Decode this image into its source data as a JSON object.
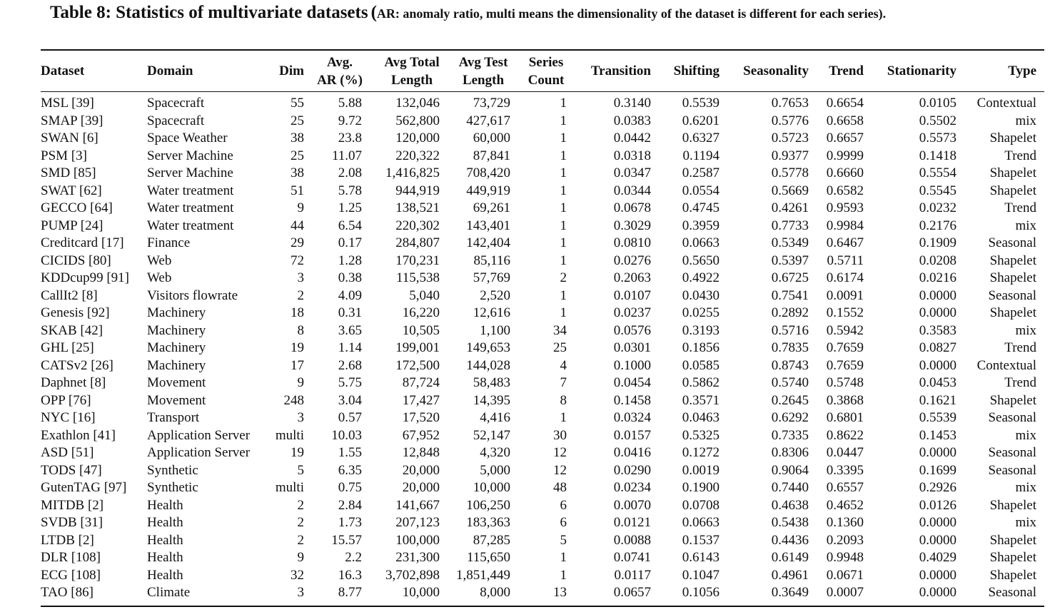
{
  "caption": {
    "main": "Table 8: Statistics of multivariate datasets",
    "paren_open": "(",
    "note": "AR: anomaly ratio, multi means the dimensionality of the dataset is different for each series).",
    "paren_close": ""
  },
  "headers": [
    {
      "key": "dataset",
      "lines": [
        "Dataset"
      ]
    },
    {
      "key": "domain",
      "lines": [
        "Domain"
      ]
    },
    {
      "key": "dim",
      "lines": [
        "Dim"
      ]
    },
    {
      "key": "avg_ar",
      "lines": [
        "Avg.",
        "AR (%)"
      ]
    },
    {
      "key": "avg_total_length",
      "lines": [
        "Avg Total",
        "Length"
      ]
    },
    {
      "key": "avg_test_length",
      "lines": [
        "Avg Test",
        "Length"
      ]
    },
    {
      "key": "series_count",
      "lines": [
        "Series",
        "Count"
      ]
    },
    {
      "key": "transition",
      "lines": [
        "Transition"
      ]
    },
    {
      "key": "shifting",
      "lines": [
        "Shifting"
      ]
    },
    {
      "key": "seasonality",
      "lines": [
        "Seasonality"
      ]
    },
    {
      "key": "trend",
      "lines": [
        "Trend"
      ]
    },
    {
      "key": "stationarity",
      "lines": [
        "Stationarity"
      ]
    },
    {
      "key": "type",
      "lines": [
        "Type"
      ]
    }
  ],
  "rows": [
    [
      "MSL [39]",
      "Spacecraft",
      "55",
      "5.88",
      "132,046",
      "73,729",
      "1",
      "0.3140",
      "0.5539",
      "0.7653",
      "0.6654",
      "0.0105",
      "Contextual"
    ],
    [
      "SMAP [39]",
      "Spacecraft",
      "25",
      "9.72",
      "562,800",
      "427,617",
      "1",
      "0.0383",
      "0.6201",
      "0.5776",
      "0.6658",
      "0.5502",
      "mix"
    ],
    [
      "SWAN [6]",
      "Space Weather",
      "38",
      "23.8",
      "120,000",
      "60,000",
      "1",
      "0.0442",
      "0.6327",
      "0.5723",
      "0.6657",
      "0.5573",
      "Shapelet"
    ],
    [
      "PSM [3]",
      "Server Machine",
      "25",
      "11.07",
      "220,322",
      "87,841",
      "1",
      "0.0318",
      "0.1194",
      "0.9377",
      "0.9999",
      "0.1418",
      "Trend"
    ],
    [
      "SMD [85]",
      "Server Machine",
      "38",
      "2.08",
      "1,416,825",
      "708,420",
      "1",
      "0.0347",
      "0.2587",
      "0.5778",
      "0.6660",
      "0.5554",
      "Shapelet"
    ],
    [
      "SWAT [62]",
      "Water treatment",
      "51",
      "5.78",
      "944,919",
      "449,919",
      "1",
      "0.0344",
      "0.0554",
      "0.5669",
      "0.6582",
      "0.5545",
      "Shapelet"
    ],
    [
      "GECCO [64]",
      "Water treatment",
      "9",
      "1.25",
      "138,521",
      "69,261",
      "1",
      "0.0678",
      "0.4745",
      "0.4261",
      "0.9593",
      "0.0232",
      "Trend"
    ],
    [
      "PUMP [24]",
      "Water treatment",
      "44",
      "6.54",
      "220,302",
      "143,401",
      "1",
      "0.3029",
      "0.3959",
      "0.7733",
      "0.9984",
      "0.2176",
      "mix"
    ],
    [
      "Creditcard [17]",
      "Finance",
      "29",
      "0.17",
      "284,807",
      "142,404",
      "1",
      "0.0810",
      "0.0663",
      "0.5349",
      "0.6467",
      "0.1909",
      "Seasonal"
    ],
    [
      "CICIDS [80]",
      "Web",
      "72",
      "1.28",
      "170,231",
      "85,116",
      "1",
      "0.0276",
      "0.5650",
      "0.5397",
      "0.5711",
      "0.0208",
      "Shapelet"
    ],
    [
      "KDDcup99 [91]",
      "Web",
      "3",
      "0.38",
      "115,538",
      "57,769",
      "2",
      "0.2063",
      "0.4922",
      "0.6725",
      "0.6174",
      "0.0216",
      "Shapelet"
    ],
    [
      "CallIt2 [8]",
      "Visitors flowrate",
      "2",
      "4.09",
      "5,040",
      "2,520",
      "1",
      "0.0107",
      "0.0430",
      "0.7541",
      "0.0091",
      "0.0000",
      "Seasonal"
    ],
    [
      "Genesis [92]",
      "Machinery",
      "18",
      "0.31",
      "16,220",
      "12,616",
      "1",
      "0.0237",
      "0.0255",
      "0.2892",
      "0.1552",
      "0.0000",
      "Shapelet"
    ],
    [
      "SKAB [42]",
      "Machinery",
      "8",
      "3.65",
      "10,505",
      "1,100",
      "34",
      "0.0576",
      "0.3193",
      "0.5716",
      "0.5942",
      "0.3583",
      "mix"
    ],
    [
      "GHL [25]",
      "Machinery",
      "19",
      "1.14",
      "199,001",
      "149,653",
      "25",
      "0.0301",
      "0.1856",
      "0.7835",
      "0.7659",
      "0.0827",
      "Trend"
    ],
    [
      "CATSv2 [26]",
      "Machinery",
      "17",
      "2.68",
      "172,500",
      "144,028",
      "4",
      "0.1000",
      "0.0585",
      "0.8743",
      "0.7659",
      "0.0000",
      "Contextual"
    ],
    [
      "Daphnet [8]",
      "Movement",
      "9",
      "5.75",
      "87,724",
      "58,483",
      "7",
      "0.0454",
      "0.5862",
      "0.5740",
      "0.5748",
      "0.0453",
      "Trend"
    ],
    [
      "OPP [76]",
      "Movement",
      "248",
      "3.04",
      "17,427",
      "14,395",
      "8",
      "0.1458",
      "0.3571",
      "0.2645",
      "0.3868",
      "0.1621",
      "Shapelet"
    ],
    [
      "NYC [16]",
      "Transport",
      "3",
      "0.57",
      "17,520",
      "4,416",
      "1",
      "0.0324",
      "0.0463",
      "0.6292",
      "0.6801",
      "0.5539",
      "Seasonal"
    ],
    [
      "Exathlon [41]",
      "Application Server",
      "multi",
      "10.03",
      "67,952",
      "52,147",
      "30",
      "0.0157",
      "0.5325",
      "0.7335",
      "0.8622",
      "0.1453",
      "mix"
    ],
    [
      "ASD [51]",
      "Application Server",
      "19",
      "1.55",
      "12,848",
      "4,320",
      "12",
      "0.0416",
      "0.1272",
      "0.8306",
      "0.0447",
      "0.0000",
      "Seasonal"
    ],
    [
      "TODS [47]",
      "Synthetic",
      "5",
      "6.35",
      "20,000",
      "5,000",
      "12",
      "0.0290",
      "0.0019",
      "0.9064",
      "0.3395",
      "0.1699",
      "Seasonal"
    ],
    [
      "GutenTAG [97]",
      "Synthetic",
      "multi",
      "0.75",
      "20,000",
      "10,000",
      "48",
      "0.0234",
      "0.1900",
      "0.7440",
      "0.6557",
      "0.2926",
      "mix"
    ],
    [
      "MITDB [2]",
      "Health",
      "2",
      "2.84",
      "141,667",
      "106,250",
      "6",
      "0.0070",
      "0.0708",
      "0.4638",
      "0.4652",
      "0.0126",
      "Shapelet"
    ],
    [
      "SVDB [31]",
      "Health",
      "2",
      "1.73",
      "207,123",
      "183,363",
      "6",
      "0.0121",
      "0.0663",
      "0.5438",
      "0.1360",
      "0.0000",
      "mix"
    ],
    [
      "LTDB [2]",
      "Health",
      "2",
      "15.57",
      "100,000",
      "87,285",
      "5",
      "0.0088",
      "0.1537",
      "0.4436",
      "0.2093",
      "0.0000",
      "Shapelet"
    ],
    [
      "DLR [108]",
      "Health",
      "9",
      "2.2",
      "231,300",
      "115,650",
      "1",
      "0.0741",
      "0.6143",
      "0.6149",
      "0.9948",
      "0.4029",
      "Shapelet"
    ],
    [
      "ECG [108]",
      "Health",
      "32",
      "16.3",
      "3,702,898",
      "1,851,449",
      "1",
      "0.0117",
      "0.1047",
      "0.4961",
      "0.0671",
      "0.0000",
      "Shapelet"
    ],
    [
      "TAO [86]",
      "Climate",
      "3",
      "8.77",
      "10,000",
      "8,000",
      "13",
      "0.0657",
      "0.1056",
      "0.3649",
      "0.0007",
      "0.0000",
      "Seasonal"
    ]
  ]
}
